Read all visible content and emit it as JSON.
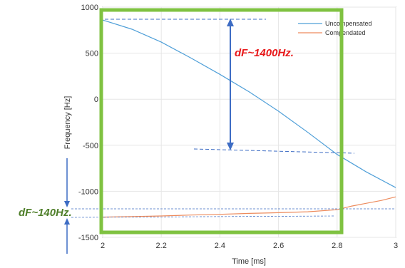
{
  "chart_data": {
    "type": "line",
    "title": "",
    "xlabel": "Time [ms]",
    "ylabel": "Frequency [Hz]",
    "xlim": [
      2,
      3
    ],
    "ylim": [
      -1500,
      1000
    ],
    "xticks": [
      "2",
      "2.2",
      "2.4",
      "2.6",
      "2.8",
      "3"
    ],
    "yticks": [
      "1000",
      "500",
      "0",
      "-500",
      "-1000",
      "-1500"
    ],
    "grid": true,
    "legend_placement": "top-right",
    "series": [
      {
        "name": "Uncompensated",
        "color": "#4f9fd8",
        "x": [
          2.0,
          2.1,
          2.2,
          2.3,
          2.4,
          2.5,
          2.6,
          2.7,
          2.8,
          2.9,
          3.0
        ],
        "y": [
          860,
          760,
          620,
          450,
          270,
          80,
          -130,
          -360,
          -600,
          -790,
          -960
        ]
      },
      {
        "name": "Compendated",
        "color": "#ed8b5d",
        "x": [
          2.0,
          2.1,
          2.2,
          2.3,
          2.4,
          2.5,
          2.6,
          2.7,
          2.8,
          2.85,
          2.9,
          2.95,
          3.0
        ],
        "y": [
          -1280,
          -1275,
          -1268,
          -1258,
          -1250,
          -1240,
          -1232,
          -1222,
          -1200,
          -1160,
          -1130,
          -1100,
          -1060
        ]
      }
    ],
    "annotations": {
      "upper": "dF~1400Hz.",
      "lower": "dF~140Hz."
    }
  },
  "colors": {
    "highlight_box": "#7fc241",
    "annotation_arrow": "#3d6cc4",
    "annotation_red": "#e8191b",
    "annotation_green": "#4f7f2a"
  }
}
